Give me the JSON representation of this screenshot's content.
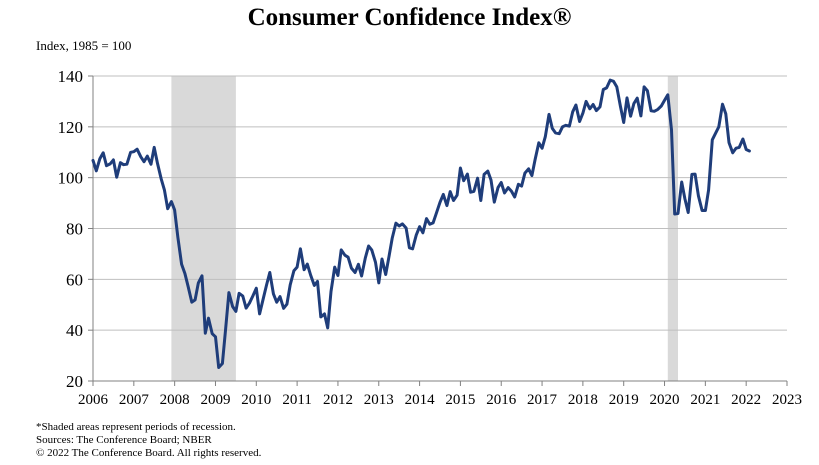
{
  "title": "Consumer Confidence Index®",
  "subtitle": "Index, 1985 = 100",
  "notes": [
    "*Shaded areas represent periods of recession.",
    "Sources: The Conference Board; NBER",
    "© 2022 The Conference Board. All rights reserved."
  ],
  "chart_data": {
    "type": "line",
    "title": "Consumer Confidence Index®",
    "ylabel": "Index, 1985 = 100",
    "xlabel": "",
    "xlim": [
      2006,
      2023
    ],
    "ylim": [
      20,
      140
    ],
    "yticks": [
      20,
      40,
      60,
      80,
      100,
      120,
      140
    ],
    "xticks": [
      2006,
      2007,
      2008,
      2009,
      2010,
      2011,
      2012,
      2013,
      2014,
      2015,
      2016,
      2017,
      2018,
      2019,
      2020,
      2021,
      2022,
      2023
    ],
    "grid": "horizontal",
    "line_color": "#1f3d7a",
    "recession_color": "#d9d9d9",
    "recessions": [
      [
        2007.92,
        2009.5
      ],
      [
        2020.08,
        2020.33
      ]
    ],
    "series": [
      {
        "x": [
          2006.0,
          2006.08,
          2006.17,
          2006.25,
          2006.33,
          2006.42,
          2006.5,
          2006.58,
          2006.67,
          2006.75,
          2006.83,
          2006.92,
          2007.0,
          2007.08,
          2007.17,
          2007.25,
          2007.33,
          2007.42,
          2007.5,
          2007.58,
          2007.67,
          2007.75,
          2007.83,
          2007.92,
          2008.0,
          2008.08,
          2008.17,
          2008.25,
          2008.33,
          2008.42,
          2008.5,
          2008.58,
          2008.67,
          2008.75,
          2008.83,
          2008.92,
          2009.0,
          2009.08,
          2009.17,
          2009.25,
          2009.33,
          2009.42,
          2009.5,
          2009.58,
          2009.67,
          2009.75,
          2009.83,
          2009.92,
          2010.0,
          2010.08,
          2010.17,
          2010.25,
          2010.33,
          2010.42,
          2010.5,
          2010.58,
          2010.67,
          2010.75,
          2010.83,
          2010.92,
          2011.0,
          2011.08,
          2011.17,
          2011.25,
          2011.33,
          2011.42,
          2011.5,
          2011.58,
          2011.67,
          2011.75,
          2011.83,
          2011.92,
          2012.0,
          2012.08,
          2012.17,
          2012.25,
          2012.33,
          2012.42,
          2012.5,
          2012.58,
          2012.67,
          2012.75,
          2012.83,
          2012.92,
          2013.0,
          2013.08,
          2013.17,
          2013.25,
          2013.33,
          2013.42,
          2013.5,
          2013.58,
          2013.67,
          2013.75,
          2013.83,
          2013.92,
          2014.0,
          2014.08,
          2014.17,
          2014.25,
          2014.33,
          2014.42,
          2014.5,
          2014.58,
          2014.67,
          2014.75,
          2014.83,
          2014.92,
          2015.0,
          2015.08,
          2015.17,
          2015.25,
          2015.33,
          2015.42,
          2015.5,
          2015.58,
          2015.67,
          2015.75,
          2015.83,
          2015.92,
          2016.0,
          2016.08,
          2016.17,
          2016.25,
          2016.33,
          2016.42,
          2016.5,
          2016.58,
          2016.67,
          2016.75,
          2016.83,
          2016.92,
          2017.0,
          2017.08,
          2017.17,
          2017.25,
          2017.33,
          2017.42,
          2017.5,
          2017.58,
          2017.67,
          2017.75,
          2017.83,
          2017.92,
          2018.0,
          2018.08,
          2018.17,
          2018.25,
          2018.33,
          2018.42,
          2018.5,
          2018.58,
          2018.67,
          2018.75,
          2018.83,
          2018.92,
          2019.0,
          2019.08,
          2019.17,
          2019.25,
          2019.33,
          2019.42,
          2019.5,
          2019.58,
          2019.67,
          2019.75,
          2019.83,
          2019.92,
          2020.0,
          2020.08,
          2020.17,
          2020.25,
          2020.33,
          2020.42,
          2020.5,
          2020.58,
          2020.67,
          2020.75,
          2020.83,
          2020.92,
          2021.0,
          2021.08,
          2021.17,
          2021.25,
          2021.33,
          2021.42,
          2021.5,
          2021.58,
          2021.67,
          2021.75,
          2021.83,
          2021.92,
          2022.0,
          2022.08
        ],
        "y": [
          106.8,
          102.7,
          107.5,
          109.8,
          104.7,
          105.4,
          107.0,
          100.2,
          105.9,
          105.1,
          105.3,
          110.0,
          110.2,
          111.2,
          108.2,
          106.3,
          108.5,
          105.3,
          111.9,
          105.6,
          99.5,
          95.2,
          87.8,
          90.6,
          87.3,
          76.4,
          65.9,
          62.3,
          57.2,
          51.0,
          51.9,
          58.5,
          61.4,
          38.8,
          44.7,
          38.6,
          37.4,
          25.3,
          26.9,
          40.8,
          54.8,
          49.3,
          47.4,
          54.5,
          53.4,
          48.7,
          50.6,
          53.6,
          56.5,
          46.4,
          52.3,
          57.7,
          62.7,
          54.3,
          51.0,
          53.2,
          48.6,
          50.2,
          57.8,
          63.4,
          64.8,
          72.0,
          63.8,
          66.0,
          61.7,
          57.6,
          59.2,
          45.2,
          46.4,
          40.9,
          55.2,
          64.8,
          61.5,
          71.6,
          69.5,
          68.7,
          64.4,
          62.7,
          65.9,
          61.3,
          68.4,
          73.1,
          71.5,
          66.7,
          58.6,
          68.0,
          61.9,
          69.0,
          76.2,
          82.1,
          81.0,
          81.8,
          80.2,
          72.4,
          72.0,
          77.5,
          80.7,
          78.3,
          83.9,
          81.7,
          82.2,
          86.4,
          90.3,
          93.4,
          89.0,
          94.5,
          91.0,
          93.1,
          103.8,
          98.8,
          101.4,
          94.3,
          94.6,
          99.8,
          91.0,
          101.3,
          102.6,
          99.1,
          90.4,
          96.1,
          98.1,
          94.0,
          96.1,
          94.7,
          92.4,
          97.4,
          96.7,
          101.8,
          103.5,
          100.8,
          107.1,
          113.7,
          111.6,
          116.1,
          124.9,
          119.4,
          117.6,
          117.3,
          120.0,
          120.6,
          120.3,
          125.9,
          128.6,
          122.1,
          125.4,
          130.0,
          127.1,
          128.8,
          126.4,
          127.9,
          134.7,
          135.3,
          138.4,
          137.9,
          135.7,
          128.1,
          121.7,
          131.4,
          124.2,
          129.2,
          131.3,
          124.3,
          135.7,
          134.2,
          126.3,
          126.1,
          126.8,
          128.2,
          130.4,
          132.6,
          118.8,
          85.7,
          85.9,
          98.3,
          91.7,
          86.3,
          101.3,
          101.4,
          92.9,
          87.1,
          87.1,
          95.2,
          114.9,
          117.5,
          120.0,
          128.9,
          125.1,
          113.8,
          109.8,
          111.6,
          111.9,
          115.2,
          111.1,
          110.5
        ]
      }
    ]
  }
}
